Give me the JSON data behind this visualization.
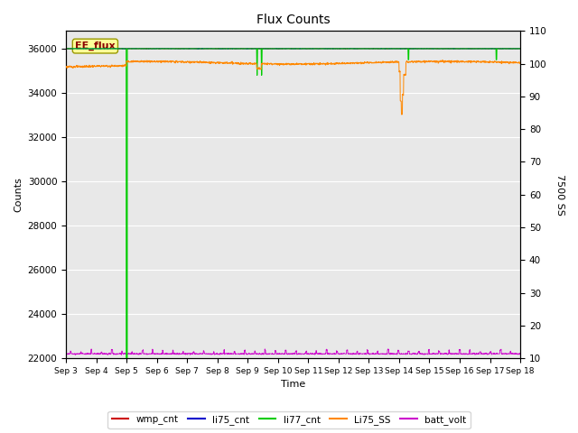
{
  "title": "Flux Counts",
  "xlabel": "Time",
  "ylabel_left": "Counts",
  "ylabel_right": "7500 SS",
  "ylim_left": [
    22000,
    36800
  ],
  "ylim_right": [
    10,
    110
  ],
  "yticks_left": [
    22000,
    24000,
    26000,
    28000,
    30000,
    32000,
    34000,
    36000
  ],
  "yticks_right": [
    10,
    20,
    30,
    40,
    50,
    60,
    70,
    80,
    90,
    100,
    110
  ],
  "background_color": "#e8e8e8",
  "annotation_text": "EE_flux",
  "legend_entries": [
    "wmp_cnt",
    "li75_cnt",
    "li77_cnt",
    "Li75_SS",
    "batt_volt"
  ],
  "legend_colors": [
    "#cc0000",
    "#0000cc",
    "#00cc00",
    "#ff8800",
    "#cc00cc"
  ],
  "n_points": 2000,
  "days": 15
}
